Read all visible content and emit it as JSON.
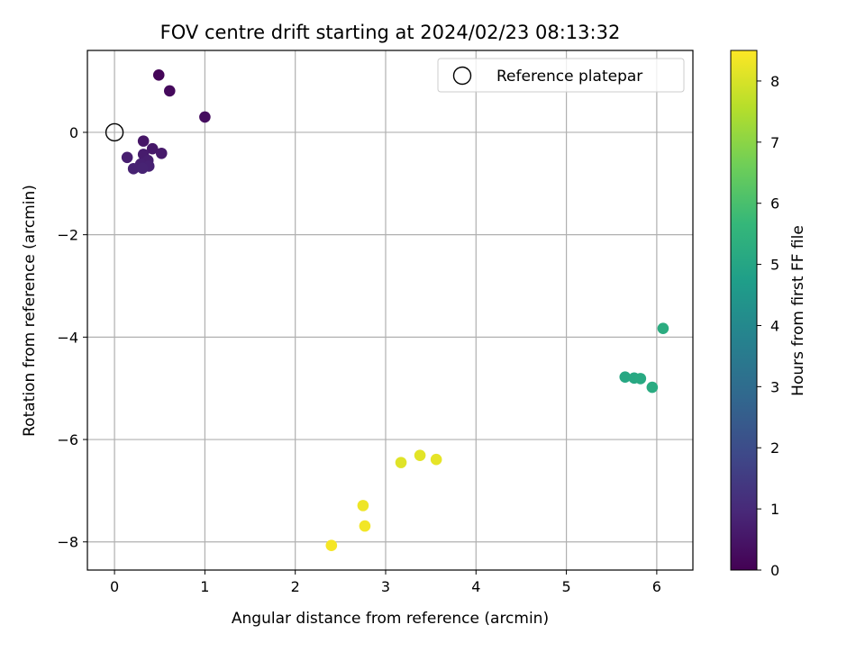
{
  "chart_data": {
    "type": "scatter",
    "title": "FOV centre drift starting at 2024/02/23 08:13:32",
    "xlabel": "Angular distance from reference (arcmin)",
    "ylabel": "Rotation from reference (arcmin)",
    "xlim": [
      -0.3,
      6.4
    ],
    "ylim": [
      -8.55,
      1.6
    ],
    "xticks": [
      0,
      1,
      2,
      3,
      4,
      5,
      6
    ],
    "xtick_labels": [
      "0",
      "1",
      "2",
      "3",
      "4",
      "5",
      "6"
    ],
    "yticks": [
      0,
      -2,
      -4,
      -6,
      -8
    ],
    "ytick_labels": [
      "0",
      "−2",
      "−4",
      "−6",
      "−8"
    ],
    "grid": true,
    "legend": {
      "placement": "top-right",
      "entries": [
        "Reference platepar"
      ]
    },
    "reference_point": {
      "x": 0,
      "y": 0
    },
    "colorbar": {
      "label": "Hours from first FF file",
      "range": [
        0,
        8.5
      ],
      "ticks": [
        0,
        1,
        2,
        3,
        4,
        5,
        6,
        7,
        8
      ],
      "tick_labels": [
        "0",
        "1",
        "2",
        "3",
        "4",
        "5",
        "6",
        "7",
        "8"
      ],
      "colormap": "viridis"
    },
    "points": [
      {
        "x": 0.49,
        "y": 1.12,
        "hours": 0.1
      },
      {
        "x": 0.61,
        "y": 0.81,
        "hours": 0.2
      },
      {
        "x": 1.0,
        "y": 0.3,
        "hours": 0.3
      },
      {
        "x": 0.32,
        "y": -0.17,
        "hours": 0.5
      },
      {
        "x": 0.42,
        "y": -0.32,
        "hours": 0.55
      },
      {
        "x": 0.52,
        "y": -0.41,
        "hours": 0.6
      },
      {
        "x": 0.32,
        "y": -0.43,
        "hours": 0.65
      },
      {
        "x": 0.14,
        "y": -0.49,
        "hours": 0.7
      },
      {
        "x": 0.37,
        "y": -0.55,
        "hours": 0.72
      },
      {
        "x": 0.29,
        "y": -0.62,
        "hours": 0.75
      },
      {
        "x": 0.38,
        "y": -0.66,
        "hours": 0.78
      },
      {
        "x": 0.21,
        "y": -0.71,
        "hours": 0.8
      },
      {
        "x": 0.31,
        "y": -0.7,
        "hours": 0.82
      },
      {
        "x": 5.65,
        "y": -4.78,
        "hours": 5.05
      },
      {
        "x": 5.75,
        "y": -4.8,
        "hours": 5.1
      },
      {
        "x": 5.82,
        "y": -4.81,
        "hours": 5.15
      },
      {
        "x": 5.95,
        "y": -4.98,
        "hours": 5.2
      },
      {
        "x": 6.07,
        "y": -3.83,
        "hours": 5.25
      },
      {
        "x": 3.17,
        "y": -6.45,
        "hours": 8.1
      },
      {
        "x": 3.38,
        "y": -6.31,
        "hours": 8.15
      },
      {
        "x": 3.56,
        "y": -6.39,
        "hours": 8.2
      },
      {
        "x": 2.75,
        "y": -7.29,
        "hours": 8.3
      },
      {
        "x": 2.77,
        "y": -7.69,
        "hours": 8.35
      },
      {
        "x": 2.4,
        "y": -8.07,
        "hours": 8.4
      }
    ]
  },
  "colors": {
    "grid": "#b0b0b0",
    "axes": "#000000",
    "viridis_stops": [
      "#440154",
      "#482878",
      "#3e4989",
      "#31688e",
      "#26828e",
      "#1f9e89",
      "#35b779",
      "#6ece58",
      "#b5de2b",
      "#fde725"
    ]
  }
}
